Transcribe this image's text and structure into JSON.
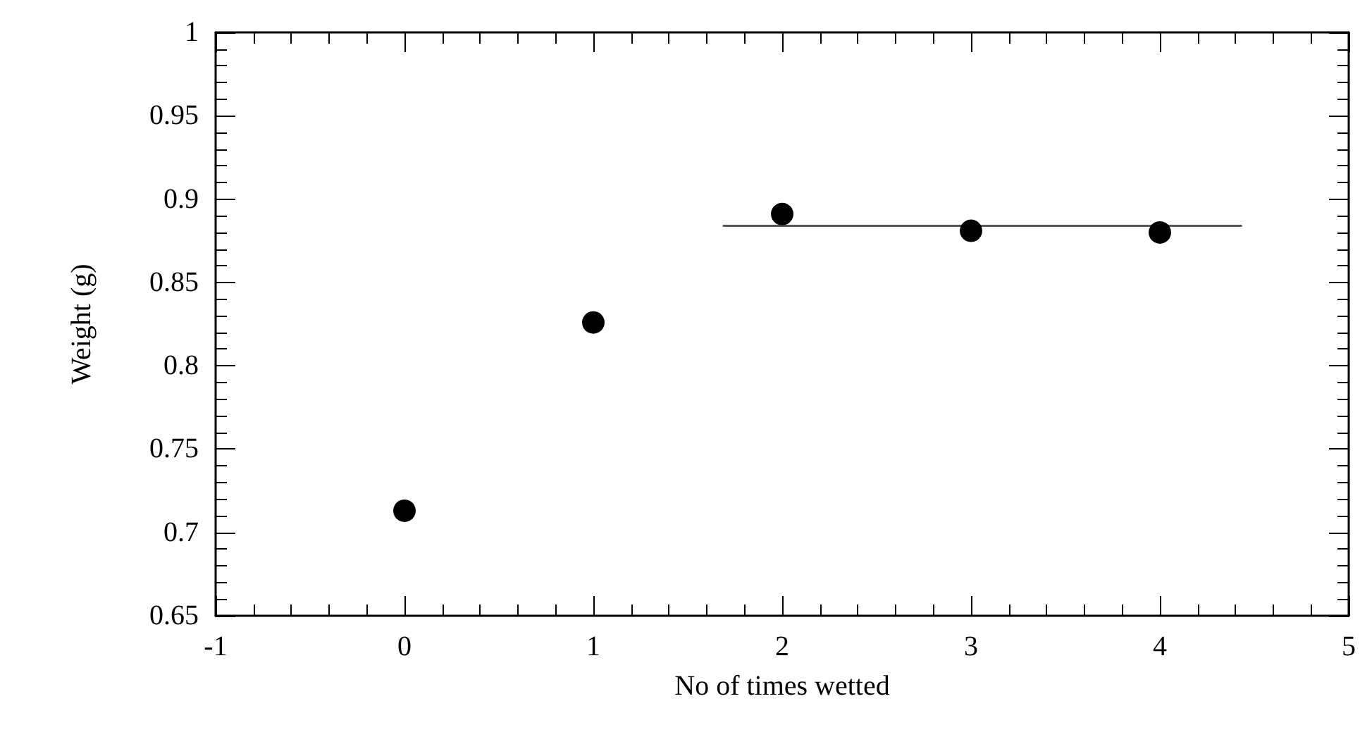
{
  "chart_data": {
    "type": "scatter",
    "xlabel": "No of times wetted",
    "ylabel": "Weight (g)",
    "marker": "circle",
    "series": [
      {
        "color": "#000000",
        "x": [
          0,
          1,
          2,
          3,
          4
        ],
        "values": [
          0.713,
          0.826,
          0.891,
          0.881,
          0.88
        ]
      },
      {
        "type": "line",
        "color": "#555555",
        "marker": "none",
        "line_style": "solid",
        "x": [
          1.69,
          4.43
        ],
        "values": [
          0.884,
          0.884
        ]
      }
    ],
    "xlim": [
      -1,
      5
    ],
    "xticks": [
      -1,
      0,
      1,
      2,
      3,
      4,
      5
    ],
    "ylim": [
      0.65,
      1
    ],
    "yticks": [
      0.65,
      0.7,
      0.75,
      0.8,
      0.85,
      0.9,
      0.95,
      1
    ]
  }
}
